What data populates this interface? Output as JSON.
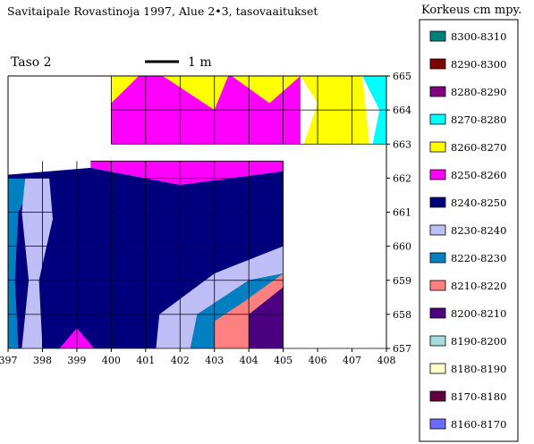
{
  "chart_data": {
    "type": "area",
    "title": "Savitaipale Rovastinoja 1997, Alue 2•3, tasovaaitukset",
    "subtitle": "Taso 2",
    "scale_label": "1 m",
    "xlim": [
      397,
      408
    ],
    "ylim": [
      657,
      665
    ],
    "x_ticks": [
      "397",
      "398",
      "399",
      "400",
      "401",
      "402",
      "403",
      "404",
      "405",
      "406",
      "407",
      "408"
    ],
    "y_ticks": [
      "665",
      "664",
      "663",
      "662",
      "661",
      "660",
      "659",
      "658",
      "657"
    ],
    "legend_title": "Korkeus cm mpy.",
    "legend_position": "right",
    "grid": true,
    "legend": [
      {
        "label": "8300-8310",
        "color": "#00807f"
      },
      {
        "label": "8290-8300",
        "color": "#7f0000"
      },
      {
        "label": "8280-8290",
        "color": "#800080"
      },
      {
        "label": "8270-8280",
        "color": "#00ffff"
      },
      {
        "label": "8260-8270",
        "color": "#ffff00"
      },
      {
        "label": "8250-8260",
        "color": "#ff00ff"
      },
      {
        "label": "8240-8250",
        "color": "#00007f"
      },
      {
        "label": "8230-8240",
        "color": "#bfbff7"
      },
      {
        "label": "8220-8230",
        "color": "#0080c0"
      },
      {
        "label": "8210-8220",
        "color": "#ff8080"
      },
      {
        "label": "8200-8210",
        "color": "#4b0080"
      },
      {
        "label": "8190-8200",
        "color": "#a6dcdc"
      },
      {
        "label": "8180-8190",
        "color": "#ffffcc"
      },
      {
        "label": "8170-8180",
        "color": "#600040"
      },
      {
        "label": "8160-8170",
        "color": "#6b6bff"
      }
    ],
    "regions": [
      {
        "level": "8250-8260",
        "points": [
          [
            400,
            665
          ],
          [
            400,
            663
          ],
          [
            405.5,
            663
          ],
          [
            405.5,
            665
          ]
        ]
      },
      {
        "level": "8260-8270",
        "points": [
          [
            400,
            665
          ],
          [
            400.8,
            665
          ],
          [
            400,
            664.2
          ]
        ]
      },
      {
        "level": "8260-8270",
        "points": [
          [
            401.5,
            665
          ],
          [
            403.4,
            665
          ],
          [
            403,
            664
          ]
        ]
      },
      {
        "level": "8260-8270",
        "points": [
          [
            403.5,
            665
          ],
          [
            405.5,
            665
          ],
          [
            404.6,
            664.2
          ]
        ]
      },
      {
        "level": "8260-8270",
        "points": [
          [
            405.5,
            665
          ],
          [
            407.3,
            665
          ],
          [
            407.5,
            663
          ],
          [
            405.6,
            663
          ],
          [
            406,
            664.2
          ]
        ]
      },
      {
        "level": "8270-8280",
        "points": [
          [
            407.3,
            665
          ],
          [
            408,
            665
          ],
          [
            408,
            663
          ],
          [
            407.6,
            663
          ],
          [
            407.8,
            664
          ]
        ]
      },
      {
        "level": "8250-8260",
        "points": [
          [
            399.4,
            662.5
          ],
          [
            405,
            662.5
          ],
          [
            405,
            662.2
          ],
          [
            402,
            661.8
          ],
          [
            399.4,
            662.3
          ]
        ]
      },
      {
        "level": "8240-8250",
        "points": [
          [
            397,
            662.1
          ],
          [
            399.4,
            662.3
          ],
          [
            402,
            661.8
          ],
          [
            405,
            662.2
          ],
          [
            405,
            657
          ],
          [
            397,
            657
          ]
        ]
      },
      {
        "level": "8220-8230",
        "points": [
          [
            397,
            662
          ],
          [
            397.8,
            662
          ],
          [
            397.3,
            661
          ],
          [
            397.2,
            659
          ],
          [
            397.3,
            657
          ],
          [
            397,
            657
          ]
        ]
      },
      {
        "level": "8230-8240",
        "points": [
          [
            397.5,
            662
          ],
          [
            398.2,
            662
          ],
          [
            398.3,
            660.8
          ],
          [
            397.9,
            659
          ],
          [
            398,
            657
          ],
          [
            397.4,
            657
          ],
          [
            397.6,
            659
          ],
          [
            397.4,
            661
          ]
        ]
      },
      {
        "level": "8230-8240",
        "points": [
          [
            401.3,
            657
          ],
          [
            401.4,
            658
          ],
          [
            403,
            659.2
          ],
          [
            405,
            660
          ],
          [
            405,
            659.2
          ],
          [
            404,
            659
          ],
          [
            402.5,
            658
          ],
          [
            402.3,
            657
          ]
        ]
      },
      {
        "level": "8220-8230",
        "points": [
          [
            402.3,
            657
          ],
          [
            402.5,
            658
          ],
          [
            404,
            659
          ],
          [
            405,
            659.2
          ],
          [
            405,
            658.4
          ],
          [
            403.9,
            658.4
          ],
          [
            403,
            657.8
          ],
          [
            403,
            657
          ]
        ]
      },
      {
        "level": "8210-8220",
        "points": [
          [
            403,
            657
          ],
          [
            403,
            657.8
          ],
          [
            403.9,
            658.4
          ],
          [
            405,
            659.2
          ],
          [
            405,
            657
          ]
        ]
      },
      {
        "level": "8200-8210",
        "points": [
          [
            404,
            657
          ],
          [
            404,
            658
          ],
          [
            405,
            658.8
          ],
          [
            405,
            657
          ]
        ]
      },
      {
        "level": "8250-8260",
        "points": [
          [
            398.5,
            657
          ],
          [
            399.5,
            657
          ],
          [
            399,
            657.6
          ]
        ]
      }
    ]
  }
}
